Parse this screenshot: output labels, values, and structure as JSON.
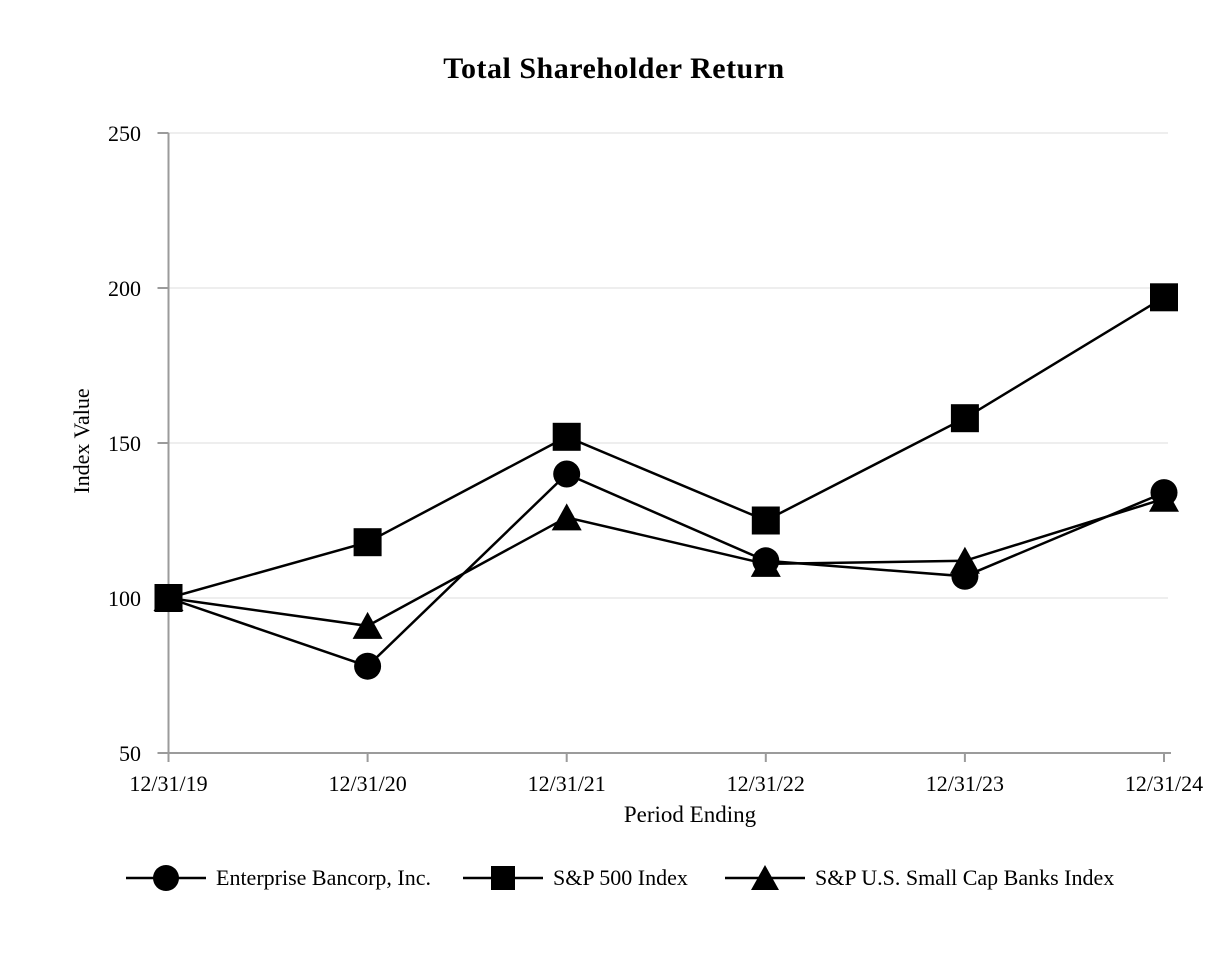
{
  "chart_data": {
    "type": "line",
    "title": "Total Shareholder Return",
    "xlabel": "Period Ending",
    "ylabel": "Index Value",
    "categories": [
      "12/31/19",
      "12/31/20",
      "12/31/21",
      "12/31/22",
      "12/31/23",
      "12/31/24"
    ],
    "y_ticks": [
      50,
      100,
      150,
      200,
      250
    ],
    "ylim": [
      50,
      250
    ],
    "grid": "horizontal-light-gray",
    "legend_position": "bottom",
    "series": [
      {
        "name": "Enterprise Bancorp, Inc.",
        "marker": "circle",
        "values": [
          100,
          78,
          140,
          112,
          107,
          134
        ]
      },
      {
        "name": "S&P 500 Index",
        "marker": "square",
        "values": [
          100,
          118,
          152,
          125,
          158,
          197
        ]
      },
      {
        "name": "S&P U.S. Small Cap Banks Index",
        "marker": "triangle",
        "values": [
          100,
          91,
          126,
          111,
          112,
          132
        ]
      }
    ],
    "colors": {
      "series": "#000000",
      "axis": "#9b9b9b",
      "gridline": "#e9e9e9",
      "text": "#000000",
      "background": "#ffffff"
    }
  }
}
